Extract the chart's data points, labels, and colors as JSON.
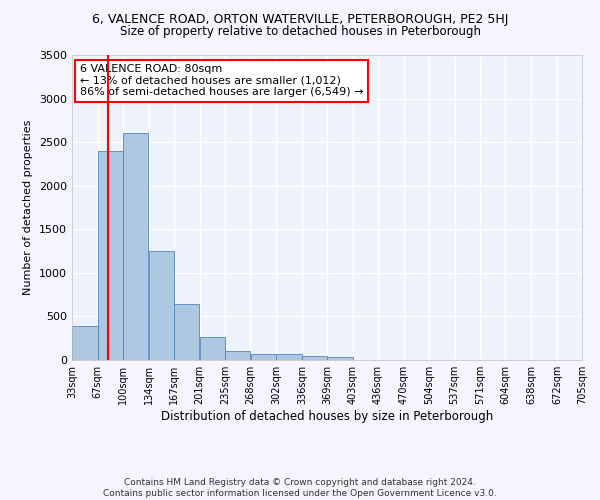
{
  "title": "6, VALENCE ROAD, ORTON WATERVILLE, PETERBOROUGH, PE2 5HJ",
  "subtitle": "Size of property relative to detached houses in Peterborough",
  "xlabel": "Distribution of detached houses by size in Peterborough",
  "ylabel": "Number of detached properties",
  "footer_line1": "Contains HM Land Registry data © Crown copyright and database right 2024.",
  "footer_line2": "Contains public sector information licensed under the Open Government Licence v3.0.",
  "annotation_line1": "6 VALENCE ROAD: 80sqm",
  "annotation_line2": "← 13% of detached houses are smaller (1,012)",
  "annotation_line3": "86% of semi-detached houses are larger (6,549) →",
  "property_size_sqm": 80,
  "bar_left_edges": [
    33,
    67,
    100,
    134,
    167,
    201,
    235,
    268,
    302,
    336,
    369,
    403,
    436,
    470,
    504,
    537,
    571,
    604,
    638,
    672
  ],
  "bar_widths": [
    34,
    33,
    34,
    33,
    34,
    34,
    33,
    34,
    34,
    33,
    34,
    33,
    34,
    34,
    33,
    34,
    33,
    34,
    34,
    33
  ],
  "bar_heights": [
    390,
    2400,
    2600,
    1250,
    640,
    260,
    100,
    65,
    65,
    50,
    30,
    0,
    0,
    0,
    0,
    0,
    0,
    0,
    0,
    0
  ],
  "bar_color": "#adc8e0",
  "bar_edge_color": "#5588bb",
  "red_line_x": 80,
  "ylim": [
    0,
    3500
  ],
  "yticks": [
    0,
    500,
    1000,
    1500,
    2000,
    2500,
    3000,
    3500
  ],
  "x_tick_labels": [
    "33sqm",
    "67sqm",
    "100sqm",
    "134sqm",
    "167sqm",
    "201sqm",
    "235sqm",
    "268sqm",
    "302sqm",
    "336sqm",
    "369sqm",
    "403sqm",
    "436sqm",
    "470sqm",
    "504sqm",
    "537sqm",
    "571sqm",
    "604sqm",
    "638sqm",
    "672sqm",
    "705sqm"
  ],
  "x_tick_positions": [
    33,
    67,
    100,
    134,
    167,
    201,
    235,
    268,
    302,
    336,
    369,
    403,
    436,
    470,
    504,
    537,
    571,
    604,
    638,
    672,
    705
  ],
  "xlim": [
    33,
    705
  ],
  "background_color": "#eef2fb",
  "grid_color": "#ffffff",
  "fig_facecolor": "#f5f5ff",
  "title_fontsize": 9,
  "subtitle_fontsize": 8.5,
  "annotation_fontsize": 8,
  "ylabel_fontsize": 8,
  "xlabel_fontsize": 8.5,
  "ytick_fontsize": 8,
  "xtick_fontsize": 7,
  "footer_fontsize": 6.5
}
